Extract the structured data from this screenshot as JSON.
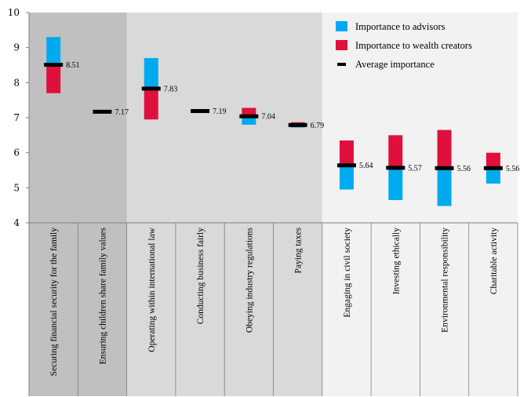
{
  "chart_data": {
    "type": "bar",
    "title": "",
    "xlabel": "",
    "ylabel": "",
    "ylim": [
      4,
      10
    ],
    "yticks": [
      4,
      5,
      6,
      7,
      8,
      9,
      10
    ],
    "legend_position": "top-right",
    "colors": {
      "advisors": "#00aaee",
      "wealth_creators": "#e0103c",
      "average": "#000000",
      "group_dark": "#c0c0c0",
      "group_mid": "#d9d9d9",
      "group_light": "#f2f2f2"
    },
    "legend": [
      {
        "key": "advisors",
        "label": "Importance to advisors"
      },
      {
        "key": "wealth_creators",
        "label": "Importance to wealth creators"
      },
      {
        "key": "average",
        "label": "Average importance"
      }
    ],
    "groups": [
      {
        "shade": "group_dark",
        "from": 0,
        "to": 1
      },
      {
        "shade": "group_mid",
        "from": 2,
        "to": 5
      },
      {
        "shade": "group_light",
        "from": 6,
        "to": 9
      }
    ],
    "categories": [
      {
        "label": "Securing financial security for the family",
        "advisors": 9.3,
        "wealth_creators": 7.7,
        "average": 8.51,
        "avg_label": "8.51"
      },
      {
        "label": "Ensuring children share family values",
        "advisors": 7.17,
        "wealth_creators": 7.17,
        "average": 7.17,
        "avg_label": "7.17"
      },
      {
        "label": "Operating within international law",
        "advisors": 8.7,
        "wealth_creators": 6.95,
        "average": 7.83,
        "avg_label": "7.83"
      },
      {
        "label": "Conducting business fairly",
        "advisors": 7.19,
        "wealth_creators": 7.19,
        "average": 7.19,
        "avg_label": "7.19"
      },
      {
        "label": "Obeying industry regulations",
        "advisors": 6.8,
        "wealth_creators": 7.28,
        "average": 7.04,
        "avg_label": "7.04"
      },
      {
        "label": "Paying taxes",
        "advisors": 6.72,
        "wealth_creators": 6.87,
        "average": 6.79,
        "avg_label": "6.79"
      },
      {
        "label": "Engaging in civil society",
        "advisors": 4.95,
        "wealth_creators": 6.35,
        "average": 5.64,
        "avg_label": "5.64"
      },
      {
        "label": "Investing ethically",
        "advisors": 4.65,
        "wealth_creators": 6.5,
        "average": 5.57,
        "avg_label": "5.57"
      },
      {
        "label": "Environmental responsibility",
        "advisors": 4.48,
        "wealth_creators": 6.65,
        "average": 5.56,
        "avg_label": "5.56"
      },
      {
        "label": "Charitable activity",
        "advisors": 5.12,
        "wealth_creators": 6.0,
        "average": 5.56,
        "avg_label": "5.56"
      }
    ]
  }
}
